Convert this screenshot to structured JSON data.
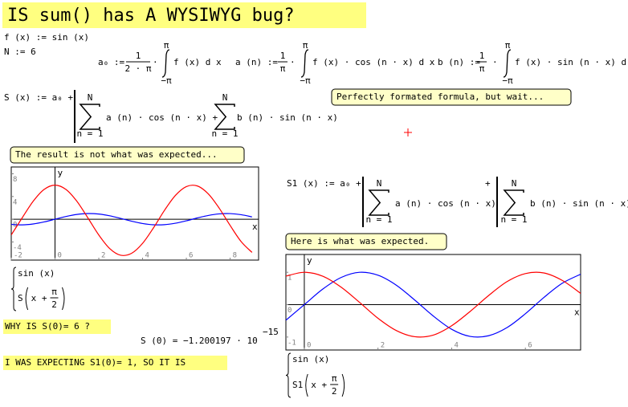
{
  "title": "IS sum() has A WYSIWYG bug?",
  "definitions": {
    "f": "f (x) := sin (x)",
    "N": "N := 6"
  },
  "a0": {
    "lhs": "a₀ :=",
    "num": "1",
    "den": "2 · π",
    "op": "·",
    "upper": "π",
    "lower": "−π",
    "integrand": "f (x) d x"
  },
  "an": {
    "lhs": "a (n) :=",
    "num": "1",
    "den": "π",
    "op": "·",
    "upper": "π",
    "lower": "−π",
    "integrand": "f (x) · cos (n · x) d x"
  },
  "bn": {
    "lhs": "b (n) :=",
    "num": "1",
    "den": "π",
    "op": "·",
    "upper": "π",
    "lower": "−π",
    "integrand": "f (x) · sin (n · x) d x"
  },
  "S": {
    "lhs": "S (x) := a₀ +",
    "sum1": {
      "upper": "N",
      "lower": "n = 1",
      "body": "a (n) · cos (n · x) +"
    },
    "sum2": {
      "upper": "N",
      "lower": "n = 1",
      "body": "b (n) · sin (n · x)"
    }
  },
  "S1": {
    "lhs": "S1 (x) := a₀ +",
    "sum1": {
      "upper": "N",
      "lower": "n = 1",
      "body": "a (n) · cos (n · x)"
    },
    "plus": "+",
    "sum2": {
      "upper": "N",
      "lower": "n = 1",
      "body": "b (n) · sin (n · x)"
    }
  },
  "notes": [
    "Perfectly formated formula, but wait...",
    "The result is not what was expected...",
    "Here is what was expected."
  ],
  "question": "WHY IS S(0)= 6 ?",
  "result": {
    "lhs": "S (0) = −1.200197 · 10",
    "exponent": "−15"
  },
  "conclusion": "I WAS EXPECTING S1(0)= 1, SO IT IS",
  "plots": [
    {
      "xlim": [
        -2,
        9.3
      ],
      "ylim": [
        -7.2,
        9.2
      ],
      "xticks": [
        -2,
        0,
        2,
        4,
        6,
        8
      ],
      "yticks": [
        -4,
        0,
        4,
        8
      ],
      "x_label": "x",
      "y_label": "y",
      "series": [
        {
          "color": "#0000ff",
          "x": [
            -2,
            -1.5,
            -1,
            -0.5,
            0,
            0.5,
            1,
            1.5,
            2,
            2.5,
            3,
            3.5,
            4,
            4.5,
            5,
            5.5,
            6,
            6.5,
            7,
            7.5,
            8,
            8.5,
            9
          ],
          "values": [
            -0.91,
            -1.0,
            -0.84,
            -0.48,
            0,
            0.48,
            0.84,
            1.0,
            0.91,
            0.6,
            0.14,
            -0.35,
            -0.76,
            -0.98,
            -0.96,
            -0.71,
            -0.28,
            0.22,
            0.66,
            0.94,
            0.99,
            0.8,
            0.41
          ]
        },
        {
          "color": "#ff0000",
          "x": [
            -2,
            -1.5,
            -1,
            -0.5,
            0,
            0.5,
            1,
            1.5,
            2,
            2.5,
            3,
            3.5,
            4,
            4.5,
            5,
            5.5,
            6,
            6.5,
            7,
            7.5,
            8,
            8.5,
            9
          ],
          "values": [
            -2.78,
            0.24,
            3.15,
            5.24,
            6.0,
            5.24,
            3.15,
            0.24,
            -2.78,
            -5.17,
            -6.34,
            -6.0,
            -4.25,
            -1.51,
            1.56,
            4.19,
            5.75,
            5.86,
            4.47,
            1.95,
            -1.1,
            -3.93,
            -5.85
          ]
        }
      ],
      "legend": {
        "first": "sin (x)",
        "fn": "S",
        "arg": "x +",
        "num": "π",
        "den": "2"
      }
    },
    {
      "xlim": [
        -0.5,
        7.5
      ],
      "ylim": [
        -1.4,
        1.55
      ],
      "xticks": [
        0,
        2,
        4,
        6
      ],
      "yticks": [
        -1,
        0,
        1
      ],
      "x_label": "x",
      "y_label": "y",
      "series": [
        {
          "color": "#0000ff",
          "x": [
            -0.5,
            0,
            0.5,
            1,
            1.5,
            2,
            2.5,
            3,
            3.5,
            4,
            4.5,
            5,
            5.5,
            6,
            6.5,
            7,
            7.5
          ],
          "values": [
            -0.48,
            0,
            0.48,
            0.84,
            1.0,
            0.91,
            0.6,
            0.14,
            -0.35,
            -0.76,
            -0.98,
            -0.96,
            -0.71,
            -0.28,
            0.22,
            0.66,
            0.94
          ]
        },
        {
          "color": "#ff0000",
          "x": [
            -0.5,
            0,
            0.5,
            1,
            1.5,
            2,
            2.5,
            3,
            3.5,
            4,
            4.5,
            5,
            5.5,
            6,
            6.5,
            7,
            7.5
          ],
          "values": [
            0.88,
            1.0,
            0.88,
            0.54,
            0.07,
            -0.42,
            -0.8,
            -0.99,
            -0.94,
            -0.65,
            -0.21,
            0.28,
            0.71,
            0.96,
            0.98,
            0.75,
            0.35
          ]
        }
      ],
      "legend": {
        "first": "sin (x)",
        "fn": "S1",
        "arg": "x +",
        "num": "π",
        "den": "2"
      }
    }
  ]
}
